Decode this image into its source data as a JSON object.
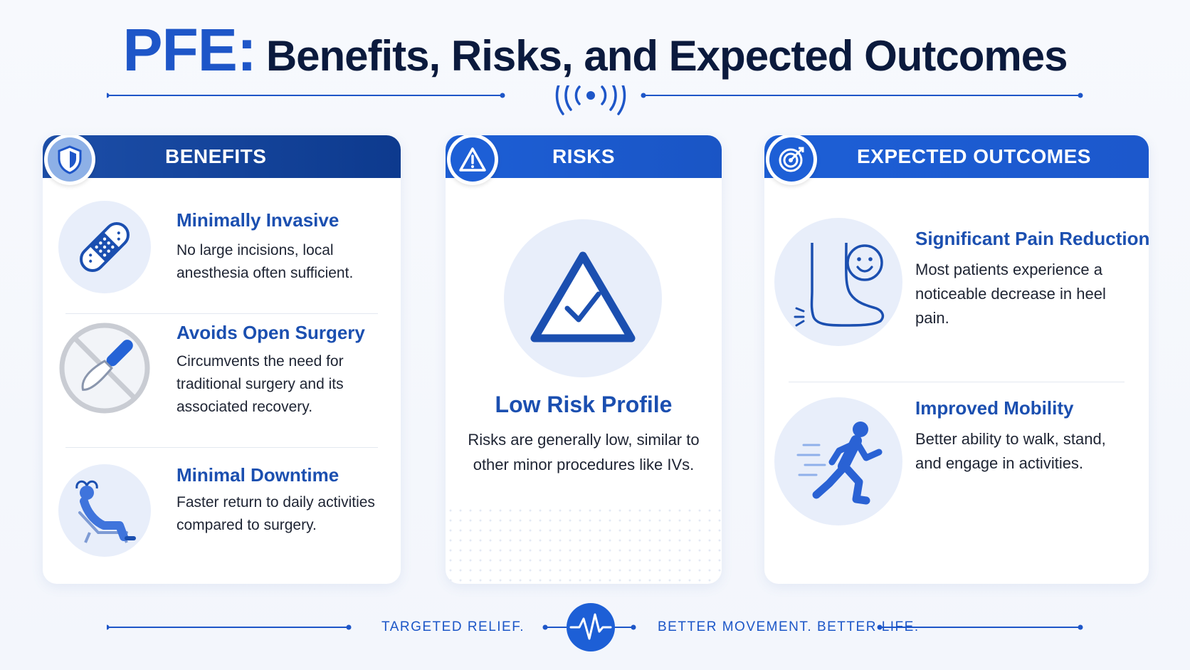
{
  "title": {
    "prefix": "PFE:",
    "main": "Benefits, Risks, and Expected Outcomes"
  },
  "colors": {
    "primary": "#1e56c8",
    "navy": "#0d3a8e",
    "dark_text": "#0b1a3d",
    "icon_bg": "#e8eefa"
  },
  "benefits": {
    "header": "BENEFITS",
    "header_icon": "shield-icon",
    "items": [
      {
        "title": "Minimally Invasive",
        "text": "No large incisions, local anesthesia often sufficient.",
        "icon": "bandage-icon"
      },
      {
        "title": "Avoids Open Surgery",
        "text": "Circumvents the need for traditional surgery and its associated recovery.",
        "icon": "no-scalpel-icon"
      },
      {
        "title": "Minimal Downtime",
        "text": "Faster return to daily activities compared to surgery.",
        "icon": "reclining-person-icon"
      }
    ]
  },
  "risks": {
    "header": "RISKS",
    "header_icon": "warning-icon",
    "title": "Low Risk Profile",
    "text": "Risks are generally low, similar to other minor procedures like IVs.",
    "icon": "warning-check-icon"
  },
  "outcomes": {
    "header": "EXPECTED OUTCOMES",
    "header_icon": "target-icon",
    "items": [
      {
        "title": "Significant Pain Reduction",
        "text": "Most patients experience a noticeable decrease in heel pain.",
        "icon": "foot-smile-icon"
      },
      {
        "title": "Improved Mobility",
        "text": "Better ability to walk, stand, and engage in activities.",
        "icon": "runner-icon"
      }
    ]
  },
  "footer": {
    "left": "TARGETED RELIEF.",
    "right": "BETTER MOVEMENT. BETTER LIFE.",
    "icon": "heartbeat-icon"
  }
}
